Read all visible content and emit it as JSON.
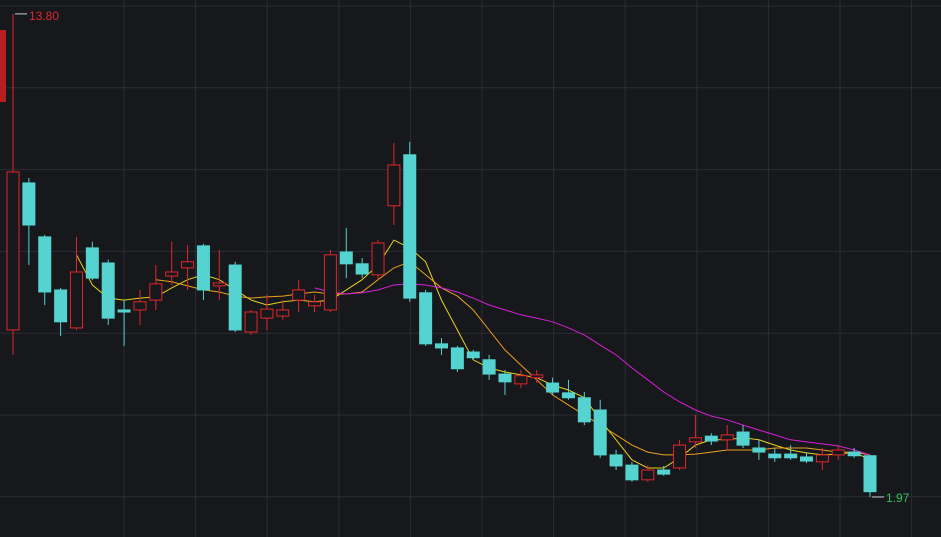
{
  "chart_data": {
    "type": "candlestick",
    "ylim": [
      0.99,
      14.14
    ],
    "up_color": "#e0262b",
    "down_color": "#54d3d0",
    "open": [
      6.06,
      9.66,
      8.34,
      7.04,
      6.11,
      8.07,
      7.7,
      6.55,
      6.55,
      6.79,
      7.38,
      7.58,
      8.12,
      7.14,
      7.65,
      6.01,
      6.35,
      6.4,
      6.79,
      6.65,
      6.55,
      7.97,
      7.68,
      7.41,
      9.1,
      10.35,
      6.97,
      5.72,
      5.62,
      5.52,
      5.33,
      4.98,
      4.74,
      4.89,
      4.76,
      4.52,
      4.4,
      4.1,
      3.0,
      2.75,
      2.39,
      2.63,
      2.68,
      3.32,
      3.46,
      3.37,
      3.56,
      3.17,
      3.02,
      3.02,
      2.95,
      2.83,
      3.0,
      3.07,
      2.98
    ],
    "high": [
      13.8,
      9.78,
      8.39,
      7.09,
      8.34,
      8.22,
      7.78,
      6.79,
      7.04,
      7.65,
      8.22,
      8.14,
      8.17,
      8.02,
      7.73,
      6.55,
      6.92,
      6.79,
      7.28,
      6.92,
      8.02,
      8.56,
      7.82,
      8.26,
      10.64,
      10.67,
      7.04,
      5.86,
      5.67,
      5.57,
      5.45,
      5.08,
      5.08,
      5.08,
      4.89,
      4.84,
      4.54,
      4.35,
      3.12,
      2.83,
      2.75,
      2.73,
      3.37,
      3.98,
      3.53,
      3.73,
      3.73,
      3.37,
      3.17,
      3.24,
      3.07,
      3.17,
      3.24,
      3.17,
      3.0
    ],
    "low": [
      5.45,
      7.65,
      6.67,
      5.91,
      6.06,
      7.28,
      6.18,
      5.67,
      6.18,
      6.55,
      7.16,
      7.04,
      6.79,
      6.79,
      6.01,
      5.94,
      6.06,
      6.31,
      6.5,
      6.5,
      6.5,
      7.33,
      7.33,
      7.29,
      8.63,
      6.75,
      5.67,
      5.45,
      5.03,
      5.33,
      4.84,
      4.47,
      4.64,
      4.76,
      4.47,
      4.35,
      3.73,
      2.93,
      2.63,
      2.34,
      2.34,
      2.49,
      2.63,
      3.17,
      3.24,
      3.12,
      3.17,
      2.88,
      2.83,
      2.88,
      2.8,
      2.63,
      2.88,
      2.93,
      1.97
    ],
    "close": [
      9.93,
      8.63,
      6.99,
      6.26,
      7.48,
      7.33,
      6.35,
      6.5,
      6.75,
      7.19,
      7.48,
      7.73,
      7.04,
      7.21,
      6.06,
      6.5,
      6.57,
      6.55,
      7.04,
      6.75,
      7.9,
      7.68,
      7.43,
      8.19,
      10.1,
      6.84,
      5.72,
      5.62,
      5.11,
      5.38,
      4.98,
      4.79,
      4.94,
      4.96,
      4.54,
      4.4,
      3.81,
      3.0,
      2.73,
      2.39,
      2.63,
      2.53,
      3.24,
      3.42,
      3.34,
      3.49,
      3.24,
      3.07,
      2.93,
      2.93,
      2.85,
      3.0,
      3.12,
      2.98,
      2.1
    ],
    "series": [
      {
        "color": "#e6d21a",
        "values": [
          null,
          null,
          null,
          null,
          7.9,
          7.16,
          6.84,
          6.79,
          6.84,
          6.87,
          7.09,
          7.29,
          7.41,
          7.29,
          7.04,
          6.79,
          6.67,
          6.75,
          6.79,
          6.75,
          6.79,
          7.04,
          7.29,
          7.65,
          8.26,
          8.07,
          7.73,
          6.79,
          6.06,
          5.33,
          5.13,
          5.03,
          4.96,
          4.89,
          4.71,
          4.59,
          4.4,
          3.86,
          3.37,
          2.88,
          2.68,
          2.68,
          2.93,
          3.24,
          3.37,
          3.37,
          3.42,
          3.37,
          3.24,
          3.12,
          3.05,
          3.0,
          3.02,
          3.07,
          2.88
        ]
      },
      {
        "color": "#e8a01c",
        "values": [
          null,
          null,
          null,
          null,
          null,
          null,
          null,
          null,
          null,
          7.29,
          7.24,
          7.14,
          7.04,
          6.99,
          6.89,
          6.84,
          6.87,
          6.89,
          6.94,
          6.99,
          6.94,
          6.94,
          6.99,
          7.29,
          7.58,
          7.73,
          7.41,
          7.09,
          6.89,
          6.55,
          6.06,
          5.57,
          5.2,
          4.84,
          4.47,
          4.22,
          3.98,
          3.73,
          3.49,
          3.24,
          3.07,
          3.0,
          3.0,
          3.02,
          3.07,
          3.12,
          3.12,
          3.12,
          3.17,
          3.17,
          3.17,
          3.12,
          3.07,
          3.07,
          3.0
        ]
      },
      {
        "color": "#d61ed6",
        "values": [
          null,
          null,
          null,
          null,
          null,
          null,
          null,
          null,
          null,
          null,
          null,
          null,
          null,
          null,
          null,
          null,
          null,
          null,
          null,
          7.09,
          6.99,
          6.94,
          6.97,
          7.04,
          7.16,
          7.19,
          7.16,
          7.09,
          6.99,
          6.84,
          6.67,
          6.55,
          6.43,
          6.35,
          6.26,
          6.11,
          5.94,
          5.69,
          5.45,
          5.13,
          4.84,
          4.54,
          4.3,
          4.1,
          3.95,
          3.86,
          3.73,
          3.61,
          3.49,
          3.37,
          3.32,
          3.27,
          3.22,
          3.12,
          3.0
        ]
      }
    ],
    "annotations": [
      {
        "value": 13.8,
        "label": "13.80",
        "color": "#e0262b"
      },
      {
        "value": 1.97,
        "label": "1.97",
        "color": "#2fc25b"
      }
    ]
  }
}
